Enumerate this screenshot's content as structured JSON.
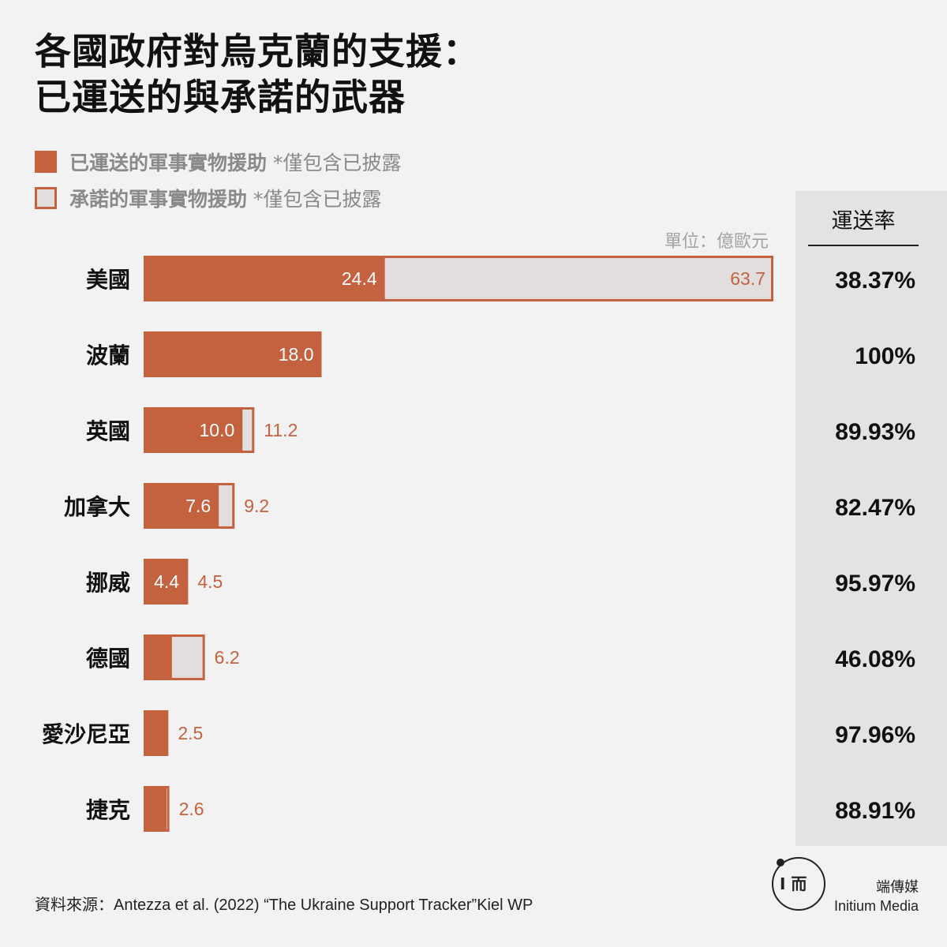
{
  "title": {
    "line1": "各國政府對烏克蘭的支援：",
    "line2": "已運送的與承諾的武器"
  },
  "legend": {
    "delivered": {
      "label": "已運送的軍事實物援助",
      "note": "*僅包含已披露"
    },
    "committed": {
      "label": "承諾的軍事實物援助",
      "note": "*僅包含已披露"
    }
  },
  "unit": "單位：億歐元",
  "rate_header": "運送率",
  "colors": {
    "delivered": "#c4623f",
    "committed": "#e3dede",
    "background": "#f2f2f2",
    "rate_panel": "#e3e3e3"
  },
  "chart_data": {
    "type": "bar",
    "orientation": "horizontal",
    "stacked_overlay": true,
    "categories": [
      "美國",
      "波蘭",
      "英國",
      "加拿大",
      "挪威",
      "德國",
      "愛沙尼亞",
      "捷克"
    ],
    "series": [
      {
        "name": "已運送的軍事實物援助",
        "values": [
          24.4,
          18.0,
          10.0,
          7.6,
          4.4,
          2.86,
          2.45,
          2.31
        ]
      },
      {
        "name": "承諾的軍事實物援助",
        "values": [
          63.7,
          18.0,
          11.2,
          9.2,
          4.5,
          6.2,
          2.5,
          2.6
        ]
      }
    ],
    "delivered_labels": [
      "24.4",
      "18.0",
      "10.0",
      "7.6",
      "4.4",
      "",
      "",
      ""
    ],
    "committed_labels": [
      "63.7",
      "",
      "11.2",
      "9.2",
      "4.5",
      "6.2",
      "2.5",
      "2.6"
    ],
    "rates": [
      "38.37%",
      "100%",
      "89.93%",
      "82.47%",
      "95.97%",
      "46.08%",
      "97.96%",
      "88.91%"
    ],
    "xlim": [
      0,
      63.7
    ],
    "grid": false,
    "legend": "top-left",
    "source": "資料來源：Antezza et al. (2022) “The Ukraine Support Tracker”Kiel WP"
  },
  "brand": {
    "cn": "端傳媒",
    "en": "Initium Media",
    "logo_mark": "I 而"
  }
}
